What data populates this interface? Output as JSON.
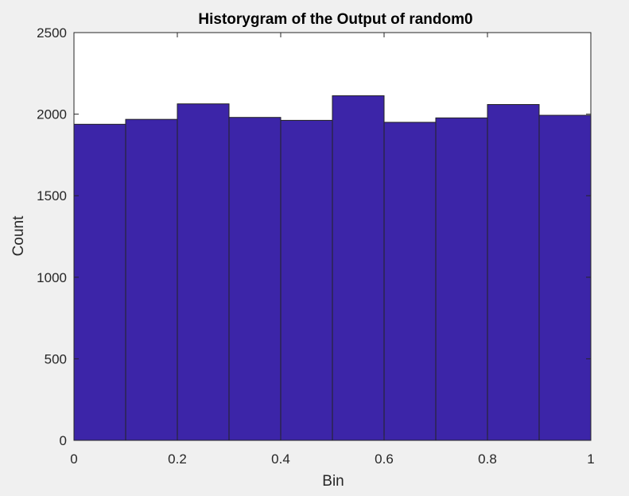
{
  "figure": {
    "background": "#f0f0f0",
    "axes_background": "#ffffff",
    "bar_color": "#3c25a8",
    "edge_color": "#222222"
  },
  "chart_data": {
    "type": "bar",
    "title": "Historygram of the Output of random0",
    "xlabel": "Bin",
    "ylabel": "Count",
    "bin_edges": [
      0,
      0.1,
      0.2,
      0.3,
      0.4,
      0.5,
      0.6,
      0.7,
      0.8,
      0.9,
      1.0
    ],
    "values": [
      1938,
      1968,
      2063,
      1980,
      1962,
      2113,
      1950,
      1977,
      2059,
      1993
    ],
    "xlim": [
      0,
      1
    ],
    "ylim": [
      0,
      2500
    ],
    "xticks": [
      0,
      0.2,
      0.4,
      0.6,
      0.8,
      1
    ],
    "xtick_labels": [
      "0",
      "0.2",
      "0.4",
      "0.6",
      "0.8",
      "1"
    ],
    "yticks": [
      0,
      500,
      1000,
      1500,
      2000,
      2500
    ],
    "ytick_labels": [
      "0",
      "500",
      "1000",
      "1500",
      "2000",
      "2500"
    ],
    "grid": false,
    "legend": false
  }
}
